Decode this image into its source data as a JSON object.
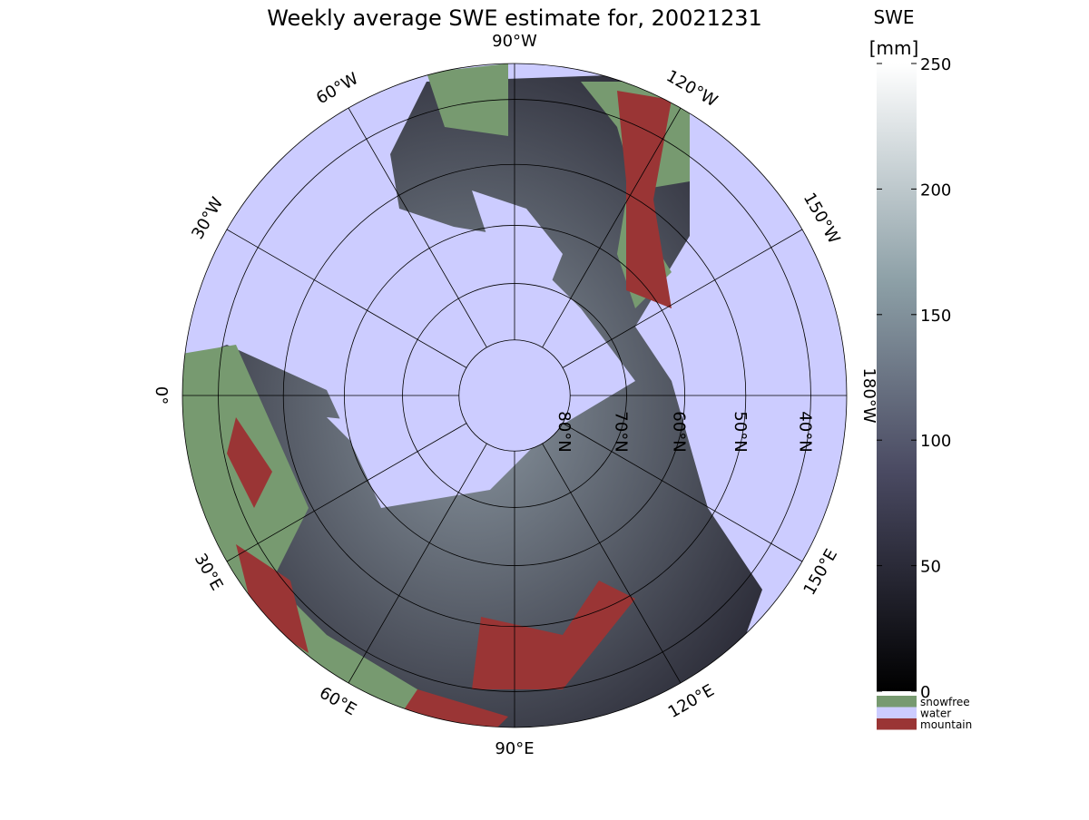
{
  "map": {
    "title": "Weekly average SWE estimate for, 20021231",
    "longitudes": [
      {
        "value": -90,
        "label": "90°W"
      },
      {
        "value": -60,
        "label": "60°W"
      },
      {
        "value": -30,
        "label": "30°W"
      },
      {
        "value": 0,
        "label": "0°"
      },
      {
        "value": 30,
        "label": "30°E"
      },
      {
        "value": 60,
        "label": "60°E"
      },
      {
        "value": 90,
        "label": "90°E"
      },
      {
        "value": 120,
        "label": "120°E"
      },
      {
        "value": 150,
        "label": "150°E"
      },
      {
        "value": 180,
        "label": "180°W"
      },
      {
        "value": -150,
        "label": "150°W"
      },
      {
        "value": -120,
        "label": "120°W"
      }
    ],
    "latitudes": [
      {
        "value": 80,
        "label": "80°N"
      },
      {
        "value": 70,
        "label": "70°N"
      },
      {
        "value": 60,
        "label": "60°N"
      },
      {
        "value": 50,
        "label": "50°N"
      },
      {
        "value": 40,
        "label": "40°N"
      }
    ],
    "colorbar": {
      "title": "SWE",
      "unit": "[mm]",
      "lim": [
        0,
        250
      ],
      "ticks": [
        0,
        50,
        100,
        150,
        200,
        250
      ]
    },
    "legend": [
      {
        "label": "snowfree",
        "color": "#779a70"
      },
      {
        "label": "water",
        "color": "#ccccff"
      },
      {
        "label": "mountain",
        "color": "#9a3535"
      }
    ]
  }
}
